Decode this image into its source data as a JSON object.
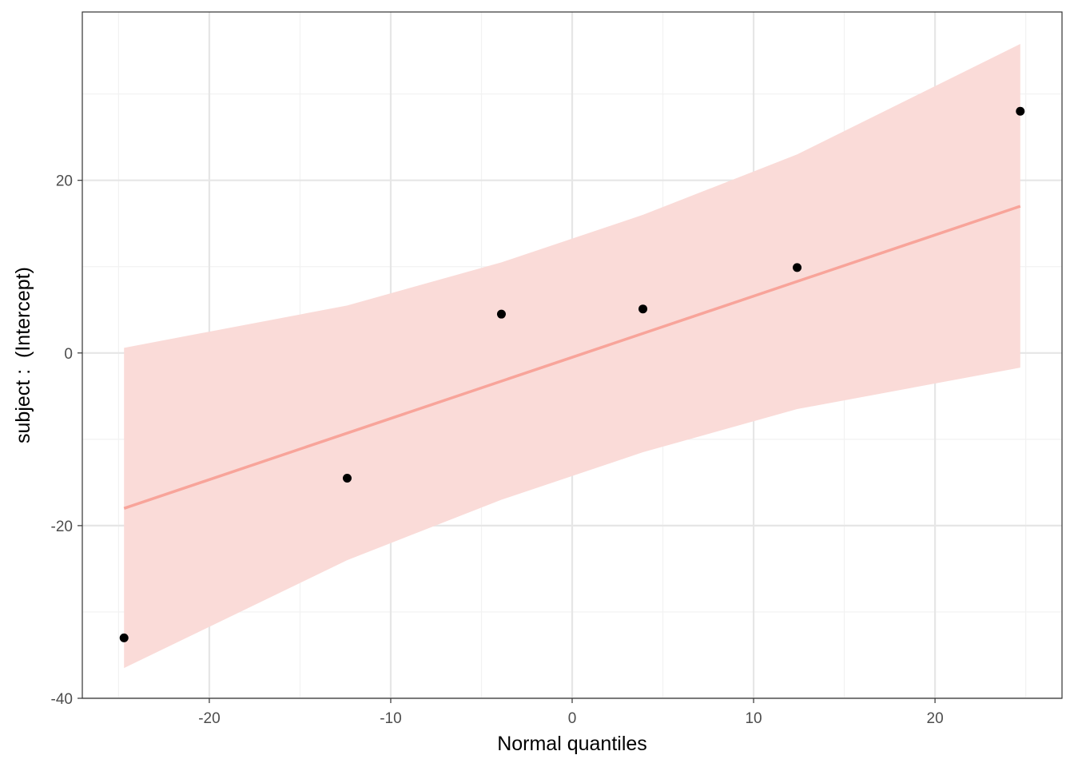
{
  "chart_data": {
    "type": "scatter",
    "title": "",
    "xlabel": "Normal quantiles",
    "ylabel": "subject :  (Intercept)",
    "xlim": [
      -27,
      27
    ],
    "ylim": [
      -40,
      39.5
    ],
    "x_ticks": [
      -20,
      -10,
      0,
      10,
      20
    ],
    "y_ticks": [
      -40,
      -20,
      0,
      20
    ],
    "x_tick_labels": [
      "-20",
      "-10",
      "0",
      "10",
      "20"
    ],
    "y_tick_labels": [
      "-40",
      "-20",
      "0",
      "20"
    ],
    "grid": true,
    "legend": "none",
    "colors": {
      "points": "#000000",
      "line": "#f8a49a",
      "band": "#fadbd8",
      "grid_major": "#e6e6e6",
      "grid_minor": "#f2f2f2",
      "panel_border": "#333333"
    },
    "points": [
      {
        "x": -24.7,
        "y": -33.0
      },
      {
        "x": -12.4,
        "y": -14.5
      },
      {
        "x": -3.9,
        "y": 4.5
      },
      {
        "x": 3.9,
        "y": 5.1
      },
      {
        "x": 12.4,
        "y": 9.9
      },
      {
        "x": 24.7,
        "y": 28.0
      }
    ],
    "fit_line": {
      "x": [
        -24.7,
        24.7
      ],
      "y": [
        -18.0,
        17.0
      ]
    },
    "confidence_band": {
      "x": [
        -24.7,
        -12.4,
        -3.9,
        3.9,
        12.4,
        24.7
      ],
      "lower": [
        -36.5,
        -24.0,
        -17.0,
        -11.5,
        -6.5,
        -1.7
      ],
      "upper": [
        0.6,
        5.5,
        10.5,
        16.0,
        23.0,
        35.8
      ]
    }
  }
}
